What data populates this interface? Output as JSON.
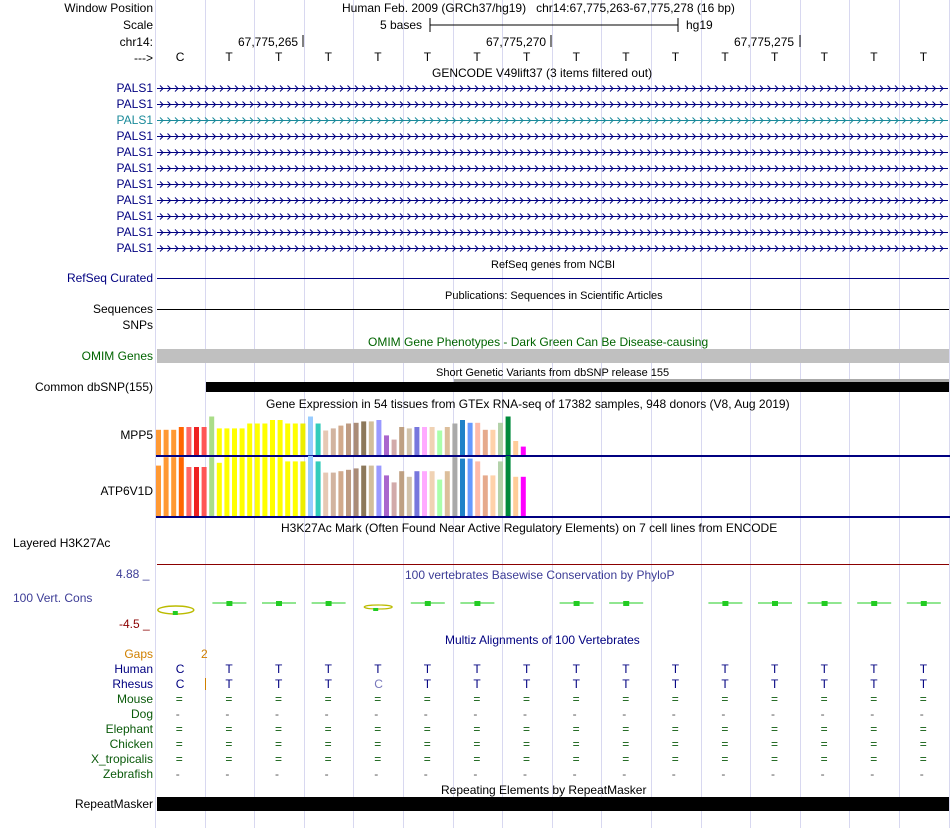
{
  "header": {
    "window_position_label": "Window Position",
    "window_position_value": "Human Feb. 2009 (GRCh37/hg19)   chr14:67,775,263-67,775,278 (16 bp)",
    "scale_label": "Scale",
    "scale_value": "5 bases",
    "scale_assembly": "hg19",
    "chrom_label": "chr14:",
    "strand_label": "--->",
    "coord_ticks": [
      "67,775,265",
      "67,775,270",
      "67,775,275"
    ]
  },
  "sequence": [
    "C",
    "T",
    "T",
    "T",
    "T",
    "T",
    "T",
    "T",
    "T",
    "T",
    "T",
    "T",
    "T",
    "T",
    "T",
    "T"
  ],
  "gencode": {
    "title": "GENCODE V49lift37 (3 items filtered out)",
    "items": [
      "PALS1",
      "PALS1",
      "PALS1",
      "PALS1",
      "PALS1",
      "PALS1",
      "PALS1",
      "PALS1",
      "PALS1",
      "PALS1",
      "PALS1"
    ],
    "highlighted_index": 2
  },
  "refseq": {
    "label": "RefSeq Curated",
    "title": "RefSeq genes from NCBI"
  },
  "publications": {
    "label": "Sequences",
    "title": "Publications: Sequences in Scientific Articles"
  },
  "snps_label": "SNPs",
  "omim": {
    "label": "OMIM Genes",
    "title": "OMIM Gene Phenotypes - Dark Green Can Be Disease-causing"
  },
  "dbsnp": {
    "label": "Common dbSNP(155)",
    "title": "Short Genetic Variants from dbSNP release 155"
  },
  "gtex": {
    "title": "Gene Expression in 54 tissues from GTEx RNA-seq of 17382 samples, 948 donors (V8, Aug 2019)",
    "genes": [
      "MPP5",
      "ATP6V1D"
    ],
    "tissue_colors": [
      "#ff9933",
      "#ff9933",
      "#ff9933",
      "#ff6600",
      "#ff6666",
      "#ee2222",
      "#ff5555",
      "#aadd88",
      "#ffff00",
      "#ffff00",
      "#ffff00",
      "#ffff00",
      "#ffff00",
      "#ffff00",
      "#ffff00",
      "#ffff00",
      "#ffff00",
      "#ffff00",
      "#ffff00",
      "#eeee00",
      "#99ccff",
      "#33ccbb",
      "#e6c8b4",
      "#d2b4a0",
      "#d2aa8c",
      "#be9b82",
      "#aa8c78",
      "#8c785a",
      "#d2be9b",
      "#9999ff",
      "#aa66cc",
      "#d2aaaa",
      "#bea082",
      "#d2c3aa",
      "#7777dd",
      "#ffaaff",
      "#f0d2b4",
      "#aaffaa",
      "#dcbe9b",
      "#aaaaaa",
      "#1e82c8",
      "#6699ff",
      "#ffbbaa",
      "#e6aa8c",
      "#ffd2aa",
      "#b4d2aa",
      "#008a3c",
      "#ffcc99",
      "#ff00ff"
    ],
    "mpp5_levels": [
      0.36,
      0.36,
      0.36,
      0.4,
      0.4,
      0.4,
      0.4,
      0.55,
      0.38,
      0.38,
      0.38,
      0.38,
      0.45,
      0.45,
      0.45,
      0.5,
      0.5,
      0.45,
      0.45,
      0.45,
      0.55,
      0.45,
      0.35,
      0.38,
      0.42,
      0.45,
      0.46,
      0.48,
      0.48,
      0.5,
      0.28,
      0.22,
      0.4,
      0.38,
      0.4,
      0.4,
      0.4,
      0.35,
      0.4,
      0.45,
      0.5,
      0.46,
      0.46,
      0.36,
      0.36,
      0.46,
      0.55,
      0.2,
      0.12
    ],
    "atp6v1d_levels": [
      0.72,
      0.84,
      0.84,
      0.84,
      0.7,
      0.7,
      0.7,
      0.84,
      0.76,
      0.84,
      0.84,
      0.84,
      0.84,
      0.84,
      0.84,
      0.84,
      0.84,
      0.78,
      0.78,
      0.78,
      0.86,
      0.78,
      0.62,
      0.62,
      0.64,
      0.66,
      0.68,
      0.72,
      0.72,
      0.72,
      0.58,
      0.48,
      0.64,
      0.56,
      0.64,
      0.64,
      0.64,
      0.52,
      0.64,
      0.84,
      0.82,
      0.82,
      0.78,
      0.58,
      0.58,
      0.78,
      0.86,
      0.56,
      0.56
    ]
  },
  "h3k27ac": {
    "label": "Layered H3K27Ac",
    "title": "H3K27Ac Mark (Often Found Near Active Regulatory Elements) on 7 cell lines from ENCODE"
  },
  "phylop": {
    "label": "100 Vert. Cons",
    "max": "4.88 _",
    "min": "-4.5 _",
    "title": "100 vertebrates Basewise Conservation by PhyloP"
  },
  "multiz": {
    "title": "Multiz Alignments of 100 Vertebrates",
    "gaps_label": "Gaps",
    "gap_count": "2",
    "species": [
      {
        "name": "Human",
        "row": [
          "C",
          "T",
          "T",
          "T",
          "T",
          "T",
          "T",
          "T",
          "T",
          "T",
          "T",
          "T",
          "T",
          "T",
          "T",
          "T"
        ]
      },
      {
        "name": "Rhesus",
        "row": [
          "C",
          "T",
          "T",
          "T",
          "C",
          "T",
          "T",
          "T",
          "T",
          "T",
          "T",
          "T",
          "T",
          "T",
          "T",
          "T"
        ]
      },
      {
        "name": "Mouse",
        "row": [
          "=",
          "=",
          "=",
          "=",
          "=",
          "=",
          "=",
          "=",
          "=",
          "=",
          "=",
          "=",
          "=",
          "=",
          "=",
          "="
        ]
      },
      {
        "name": "Dog",
        "row": [
          "-",
          "-",
          "-",
          "-",
          "-",
          "-",
          "-",
          "-",
          "-",
          "-",
          "-",
          "-",
          "-",
          "-",
          "-",
          "-"
        ]
      },
      {
        "name": "Elephant",
        "row": [
          "=",
          "=",
          "=",
          "=",
          "=",
          "=",
          "=",
          "=",
          "=",
          "=",
          "=",
          "=",
          "=",
          "=",
          "=",
          "="
        ]
      },
      {
        "name": "Chicken",
        "row": [
          "=",
          "=",
          "=",
          "=",
          "=",
          "=",
          "=",
          "=",
          "=",
          "=",
          "=",
          "=",
          "=",
          "=",
          "=",
          "="
        ]
      },
      {
        "name": "X_tropicalis",
        "row": [
          "=",
          "=",
          "=",
          "=",
          "=",
          "=",
          "=",
          "=",
          "=",
          "=",
          "=",
          "=",
          "=",
          "=",
          "=",
          "="
        ]
      },
      {
        "name": "Zebrafish",
        "row": [
          "-",
          "-",
          "-",
          "-",
          "-",
          "-",
          "-",
          "-",
          "-",
          "-",
          "-",
          "-",
          "-",
          "-",
          "-",
          "-"
        ]
      }
    ]
  },
  "repeatmasker": {
    "label": "RepeatMasker",
    "title": "Repeating Elements by RepeatMasker"
  }
}
